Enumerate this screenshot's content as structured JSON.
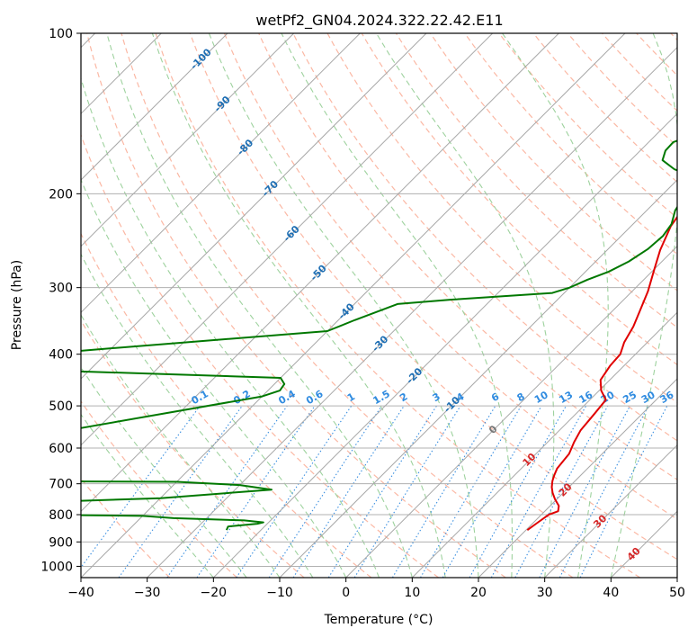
{
  "chart_data": {
    "type": "line",
    "subtype": "skew-T log-P diagram",
    "title": "wetPf2_GN04.2024.322.22.42.E11",
    "xlabel": "Temperature (°C)",
    "ylabel": "Pressure (hPa)",
    "xlim": [
      -40,
      50
    ],
    "ylim": [
      1050,
      100
    ],
    "y_scale": "log",
    "x_ticks": [
      "-40",
      "-30",
      "-20",
      "-10",
      "0",
      "10",
      "20",
      "30",
      "40",
      "50"
    ],
    "y_ticks": [
      "100",
      "200",
      "300",
      "400",
      "500",
      "600",
      "700",
      "800",
      "900",
      "1000"
    ],
    "grid": true,
    "series": [
      {
        "color": "#e00000",
        "points": [
          [
            20.2,
            855
          ],
          [
            20.6,
            830
          ],
          [
            21.1,
            800
          ],
          [
            22,
            788
          ],
          [
            21.3,
            770
          ],
          [
            19.7,
            748
          ],
          [
            18.4,
            728
          ],
          [
            17.4,
            710
          ],
          [
            16.6,
            692
          ],
          [
            16.0,
            675
          ],
          [
            15.4,
            655
          ],
          [
            15.0,
            615
          ],
          [
            14.0,
            585
          ],
          [
            13.2,
            556
          ],
          [
            12.8,
            518
          ],
          [
            12.4,
            487
          ],
          [
            10.3,
            468
          ],
          [
            8.6,
            447
          ],
          [
            7.9,
            420
          ],
          [
            7.7,
            400
          ],
          [
            6.5,
            380
          ],
          [
            5.5,
            355
          ],
          [
            4.2,
            333
          ],
          [
            2.4,
            305
          ],
          [
            0.1,
            278
          ],
          [
            -2.0,
            255
          ],
          [
            -4.0,
            230
          ],
          [
            -4.9,
            210
          ],
          [
            -4.8,
            200
          ],
          [
            -3.2,
            190
          ],
          [
            -0.2,
            181
          ],
          [
            2.6,
            175
          ],
          [
            4.9,
            169
          ],
          [
            6.5,
            160
          ],
          [
            8.4,
            150
          ],
          [
            9.7,
            143
          ],
          [
            12.1,
            136
          ],
          [
            14.3,
            130
          ],
          [
            14.7,
            125
          ],
          [
            15.1,
            118
          ],
          [
            16.3,
            112
          ],
          [
            17.3,
            105
          ],
          [
            18.5,
            100
          ]
        ]
      },
      {
        "color": "#007800",
        "points": [
          [
            -25.2,
            855
          ],
          [
            -25.5,
            842
          ],
          [
            -21.5,
            832
          ],
          [
            -20.8,
            827
          ],
          [
            -24,
            820
          ],
          [
            -35,
            812
          ],
          [
            -40,
            804
          ],
          [
            -100,
            790
          ],
          [
            -40,
            745
          ],
          [
            -24.5,
            718
          ],
          [
            -30,
            704
          ],
          [
            -40,
            694
          ],
          [
            -100,
            690
          ],
          [
            -40,
            480
          ],
          [
            -38.2,
            468
          ],
          [
            -38.5,
            455
          ],
          [
            -40,
            443
          ],
          [
            -100,
            420
          ],
          [
            -40,
            362
          ],
          [
            -37.5,
            345
          ],
          [
            -33.5,
            322
          ],
          [
            -26,
            316
          ],
          [
            -11.8,
            307
          ],
          [
            -10.0,
            300
          ],
          [
            -8.5,
            290
          ],
          [
            -6.5,
            280
          ],
          [
            -5.0,
            268
          ],
          [
            -4.0,
            254
          ],
          [
            -3.7,
            240
          ],
          [
            -4.2,
            228
          ],
          [
            -5.7,
            215
          ],
          [
            -6.3,
            205
          ],
          [
            -6.0,
            195
          ],
          [
            -7.8,
            186
          ],
          [
            -12.0,
            180
          ],
          [
            -15.2,
            173
          ],
          [
            -16.2,
            166
          ],
          [
            -16.3,
            160
          ],
          [
            -13.3,
            153
          ],
          [
            -10.0,
            147
          ],
          [
            -9.1,
            141
          ],
          [
            -8.3,
            133
          ],
          [
            -5.7,
            125
          ],
          [
            -2.0,
            119
          ],
          [
            0.1,
            112
          ],
          [
            0.2,
            105
          ],
          [
            -0.2,
            100
          ]
        ]
      }
    ],
    "isotherm_labels": [
      "-100",
      "-90",
      "-80",
      "-70",
      "-60",
      "-50",
      "-40",
      "-30",
      "-20",
      "-10",
      "0",
      "10",
      "20",
      "30",
      "40"
    ],
    "mixing_ratio_labels": [
      "0.1",
      "0.2",
      "0.4",
      "0.6",
      "1",
      "1.5",
      "2",
      "3",
      "4",
      "6",
      "8",
      "10",
      "13",
      "16",
      "20",
      "25",
      "30",
      "36"
    ]
  }
}
